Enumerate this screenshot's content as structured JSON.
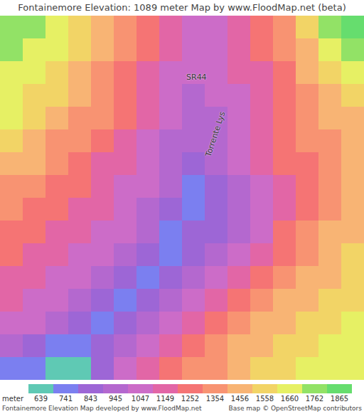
{
  "chart_data": {
    "type": "heatmap",
    "title": "Fontainemore Elevation: 1089 meter Map by www.FloodMap.net (beta)",
    "tick_labels": false,
    "cells": [
      [
        1762,
        1762,
        1660,
        1558,
        1456,
        1354,
        1252,
        1149,
        1047,
        1047,
        1149,
        1252,
        1354,
        1558,
        1762,
        1865
      ],
      [
        1762,
        1660,
        1660,
        1558,
        1456,
        1354,
        1252,
        1149,
        1047,
        1047,
        1149,
        1252,
        1354,
        1456,
        1660,
        1762
      ],
      [
        1660,
        1660,
        1558,
        1456,
        1354,
        1252,
        1149,
        1047,
        1047,
        1047,
        1149,
        1149,
        1252,
        1456,
        1558,
        1660
      ],
      [
        1660,
        1558,
        1558,
        1456,
        1354,
        1252,
        1149,
        1047,
        945,
        1047,
        1047,
        1149,
        1252,
        1354,
        1456,
        1558
      ],
      [
        1660,
        1558,
        1456,
        1354,
        1354,
        1252,
        1149,
        1047,
        945,
        945,
        1047,
        1149,
        1252,
        1354,
        1456,
        1456
      ],
      [
        1558,
        1456,
        1354,
        1354,
        1252,
        1149,
        1047,
        945,
        945,
        945,
        1047,
        1149,
        1252,
        1354,
        1354,
        1456
      ],
      [
        1456,
        1456,
        1354,
        1252,
        1149,
        1149,
        1047,
        945,
        843,
        945,
        1047,
        1149,
        1252,
        1252,
        1354,
        1456
      ],
      [
        1354,
        1354,
        1252,
        1252,
        1149,
        1047,
        1047,
        945,
        741,
        843,
        945,
        1047,
        1149,
        1252,
        1354,
        1456
      ],
      [
        1354,
        1252,
        1252,
        1149,
        1149,
        1047,
        945,
        843,
        741,
        843,
        945,
        1047,
        1149,
        1252,
        1354,
        1456
      ],
      [
        1252,
        1252,
        1149,
        1149,
        1047,
        1047,
        945,
        741,
        843,
        843,
        945,
        1047,
        1252,
        1354,
        1456,
        1456
      ],
      [
        1252,
        1149,
        1149,
        1047,
        1047,
        945,
        843,
        741,
        843,
        945,
        1047,
        1149,
        1252,
        1354,
        1456,
        1558
      ],
      [
        1149,
        1149,
        1047,
        1047,
        945,
        843,
        741,
        843,
        945,
        1047,
        1149,
        1252,
        1354,
        1456,
        1456,
        1558
      ],
      [
        1149,
        1047,
        1047,
        945,
        843,
        741,
        843,
        945,
        1047,
        1149,
        1252,
        1354,
        1456,
        1456,
        1558,
        1558
      ],
      [
        1047,
        1047,
        945,
        843,
        741,
        843,
        945,
        1047,
        1149,
        1252,
        1354,
        1456,
        1456,
        1558,
        1558,
        1660
      ],
      [
        945,
        843,
        741,
        741,
        843,
        945,
        1047,
        1149,
        1252,
        1354,
        1456,
        1456,
        1558,
        1558,
        1660,
        1660
      ],
      [
        741,
        741,
        639,
        639,
        843,
        1047,
        1149,
        1252,
        1354,
        1354,
        1456,
        1558,
        1558,
        1660,
        1660,
        1660
      ]
    ],
    "colorbar": {
      "label": "meter",
      "ticks": [
        639,
        741,
        843,
        945,
        1047,
        1149,
        1252,
        1354,
        1456,
        1558,
        1660,
        1762,
        1865
      ],
      "colors": [
        "#5fc9b4",
        "#7b7ff0",
        "#9d66d6",
        "#b468cf",
        "#cc6cc8",
        "#e266a6",
        "#f57474",
        "#f89372",
        "#f8b474",
        "#f2d466",
        "#e6f064",
        "#92e266",
        "#66dd6e"
      ]
    },
    "annotations": [
      "SR44",
      "Torrente Lys"
    ],
    "caption": "Fontainemore Elevation Map developed by www.FloodMap.net",
    "credit": "Base map © OpenStreetMap contributors"
  }
}
